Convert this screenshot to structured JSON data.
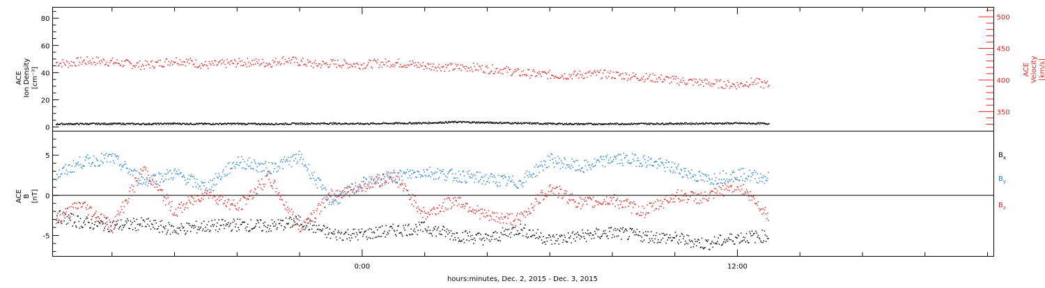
{
  "chart_data": [
    {
      "type": "scatter",
      "panel": "top",
      "left_axis": {
        "label_lines": [
          "ACE",
          "Ion Density",
          "[cm⁻³]"
        ],
        "ticks": [
          0,
          20,
          40,
          60,
          80
        ],
        "ylim": [
          -3,
          88
        ]
      },
      "right_axis": {
        "label_lines": [
          "ACE",
          "Velocity",
          "[km/s]"
        ],
        "ticks": [
          350,
          400,
          450,
          500
        ],
        "ylim": [
          319,
          515
        ]
      },
      "series": [
        {
          "axis": "right",
          "color": "#e8201c",
          "x": [
            -9.8,
            -9.4,
            -9,
            -8.5,
            -8,
            -7.5,
            -7,
            -6.5,
            -6,
            -5.5,
            -5,
            -4.5,
            -4,
            -3.5,
            -3,
            -2.5,
            -2,
            -1.5,
            -1,
            -0.5,
            0,
            0.5,
            1,
            1.5,
            2,
            2.5,
            3,
            3.5,
            4,
            4.5,
            5,
            5.5,
            6,
            6.5,
            7,
            7.5,
            8,
            8.5,
            9,
            9.5,
            10,
            10.5,
            11,
            11.5,
            12,
            12.5,
            13
          ],
          "y": [
            428,
            427,
            430,
            431,
            429,
            426,
            424,
            427,
            432,
            429,
            424,
            426,
            428,
            429,
            427,
            433,
            429,
            425,
            427,
            426,
            425,
            427,
            428,
            426,
            423,
            422,
            420,
            421,
            418,
            417,
            412,
            410,
            409,
            408,
            409,
            410,
            409,
            407,
            405,
            403,
            400,
            398,
            396,
            394,
            393,
            398,
            392
          ]
        },
        {
          "axis": "left",
          "color": "#000000",
          "x": [
            -9.8,
            -9,
            -8,
            -7,
            -6,
            -5,
            -4,
            -3,
            -2,
            -1,
            0,
            1,
            2,
            3,
            4,
            5,
            6,
            7,
            8,
            9,
            10,
            11,
            12,
            13
          ],
          "y": [
            2.6,
            2.7,
            2.8,
            2.6,
            2.9,
            2.7,
            2.8,
            2.6,
            2.9,
            3.0,
            2.8,
            3.1,
            3.3,
            4.1,
            3.6,
            3.2,
            2.8,
            2.6,
            2.7,
            2.8,
            2.9,
            3.0,
            3.1,
            2.9
          ]
        }
      ]
    },
    {
      "type": "scatter",
      "panel": "bottom",
      "left_axis": {
        "label_lines": [
          "ACE",
          "B",
          "[nT]"
        ],
        "ticks": [
          -5,
          0,
          5
        ],
        "ylim": [
          -7.6,
          8.0
        ]
      },
      "zero_line": 0,
      "series": [
        {
          "name": "Bx",
          "color": "#000000",
          "x": [
            -9.8,
            -9,
            -8,
            -7,
            -6,
            -5,
            -4,
            -3,
            -2,
            -1,
            0,
            1,
            2,
            3,
            4,
            5,
            6,
            7,
            8,
            9,
            10,
            11,
            12,
            13
          ],
          "y": [
            -2.5,
            -3.3,
            -3.7,
            -3.5,
            -4.2,
            -3.8,
            -3.6,
            -3.8,
            -3.2,
            -4.8,
            -4.8,
            -4.3,
            -4.0,
            -4.9,
            -5.4,
            -4.1,
            -5.5,
            -5.0,
            -4.6,
            -5.0,
            -5.3,
            -6.0,
            -5.2,
            -5.0
          ]
        },
        {
          "name": "By",
          "color": "#1f7fe0",
          "x": [
            -9.8,
            -9,
            -8,
            -7,
            -6,
            -5,
            -4,
            -3,
            -2,
            -1,
            0,
            1,
            2,
            3,
            4,
            5,
            6,
            7,
            8,
            9,
            10,
            11,
            12,
            13
          ],
          "y": [
            2.5,
            4.2,
            4.7,
            1.8,
            2.8,
            1.0,
            4.3,
            3.4,
            4.8,
            -0.8,
            1.5,
            2.4,
            3.0,
            2.5,
            2.1,
            1.6,
            4.5,
            3.5,
            4.6,
            4.4,
            3.4,
            2.0,
            2.7,
            2.2
          ]
        },
        {
          "name": "Bz",
          "color": "#e8201c",
          "x": [
            -9.8,
            -9,
            -8,
            -7,
            -6,
            -5,
            -4,
            -3,
            -2,
            -1,
            0,
            1,
            2,
            3,
            4,
            5,
            6,
            7,
            8,
            9,
            10,
            11,
            12,
            13
          ],
          "y": [
            -3.0,
            -1.0,
            -3.8,
            3.4,
            -2.0,
            0.5,
            -1.5,
            2.3,
            -4.0,
            0.0,
            1.2,
            2.5,
            -2.4,
            -0.5,
            -2.6,
            -3.0,
            1.0,
            -1.0,
            -0.5,
            -2.0,
            0.0,
            -0.3,
            1.5,
            -2.5
          ]
        }
      ],
      "legend": {
        "placement": "right",
        "labels": [
          "Bx",
          "By",
          "Bz"
        ]
      }
    }
  ],
  "x_axis": {
    "xlim": [
      -9.9,
      20.2
    ],
    "tick_labels": [
      {
        "value": 0,
        "label": "0:00"
      },
      {
        "value": 12,
        "label": "12:00"
      }
    ],
    "minor_ticks_every_hours": 2,
    "title": "hours:minutes, Dec.  2, 2015 - Dec.  3, 2015"
  }
}
